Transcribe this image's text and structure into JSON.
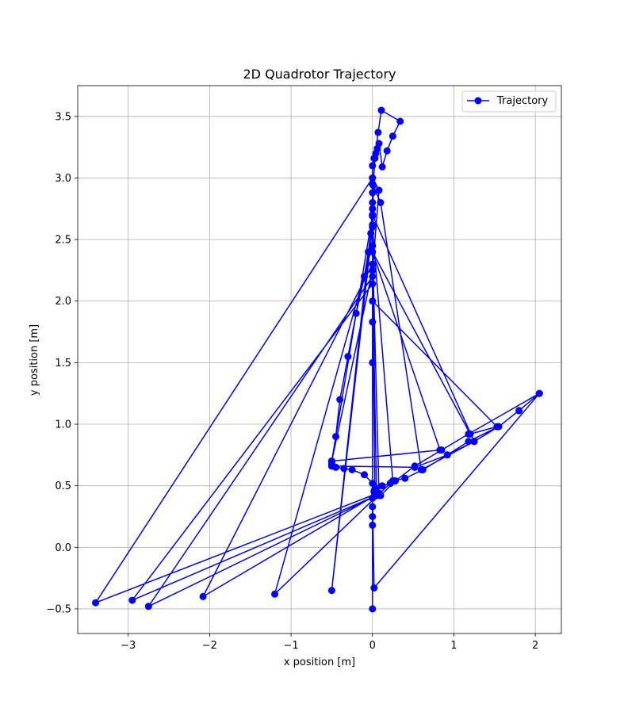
{
  "chart_data": {
    "type": "line",
    "title": "2D Quadrotor Trajectory",
    "xlabel": "x position [m]",
    "ylabel": "y position [m]",
    "xlim": [
      -3.62,
      2.32
    ],
    "ylim": [
      -0.7,
      3.75
    ],
    "xticks": [
      -3,
      -2,
      -1,
      0,
      1,
      2
    ],
    "xtick_labels": [
      "−3",
      "−2",
      "−1",
      "0",
      "1",
      "2"
    ],
    "yticks": [
      -0.5,
      0.0,
      0.5,
      1.0,
      1.5,
      2.0,
      2.5,
      3.0,
      3.5
    ],
    "ytick_labels": [
      "−0.5",
      "0.0",
      "0.5",
      "1.0",
      "1.5",
      "2.0",
      "2.5",
      "3.0",
      "3.5"
    ],
    "grid": true,
    "legend_position": "upper right",
    "series": [
      {
        "name": "Trajectory",
        "color": "#0000ff",
        "marker": "circle",
        "x": [
          0.0,
          0.0,
          0.0,
          0.0,
          0.0,
          0.02,
          0.05,
          0.12,
          0.22,
          0.28,
          0.25,
          0.4,
          0.62,
          0.92,
          1.25,
          1.55,
          1.8,
          2.05,
          1.18,
          0.85,
          0.52,
          0.28,
          0.1,
          0.02,
          0.0,
          -0.1,
          -0.25,
          -0.35,
          -0.45,
          -0.5,
          -0.5,
          -0.45,
          -0.4,
          -0.3,
          -0.2,
          -0.1,
          -0.05,
          -0.02,
          0.0,
          0.0,
          0.0,
          0.0,
          0.0,
          0.0,
          0.0,
          0.0,
          0.02,
          0.04,
          0.06,
          0.08,
          0.12,
          0.18,
          0.25,
          0.34,
          0.11,
          0.07,
          0.03,
          0.01,
          0.0,
          0.0,
          0.0,
          0.0,
          0.0,
          0.0,
          0.0,
          -0.5,
          -0.5,
          -0.5,
          0.52,
          0.92,
          1.18,
          1.55,
          1.8,
          2.05,
          0.02,
          0.0,
          0.0,
          0.1,
          0.6,
          1.25,
          0.0,
          -0.5,
          0.0,
          0.25,
          -1.2,
          0.0,
          0.08,
          -2.08,
          0.0,
          0.05,
          -2.75,
          0.0,
          0.05,
          -2.95,
          0.0,
          0.03,
          -3.4,
          0.0,
          0.08,
          0.0,
          -0.5,
          0.83,
          0.0,
          1.2,
          1.53,
          0.0
        ],
        "y": [
          -0.5,
          0.18,
          0.25,
          0.33,
          0.4,
          0.45,
          0.48,
          0.5,
          0.52,
          0.54,
          0.54,
          0.56,
          0.63,
          0.75,
          0.86,
          0.98,
          1.11,
          1.25,
          0.92,
          0.79,
          0.66,
          0.54,
          0.42,
          0.46,
          0.52,
          0.59,
          0.63,
          0.64,
          0.65,
          0.66,
          0.7,
          0.9,
          1.2,
          1.55,
          1.9,
          2.2,
          2.4,
          2.55,
          2.62,
          2.69,
          2.75,
          2.8,
          2.88,
          2.95,
          3.0,
          3.1,
          3.16,
          3.2,
          3.24,
          3.28,
          3.09,
          3.22,
          3.34,
          3.46,
          3.55,
          3.37,
          3.16,
          2.94,
          2.25,
          2.14,
          1.83,
          1.5,
          2.3,
          2.45,
          2.7,
          0.7,
          0.68,
          0.66,
          0.65,
          0.75,
          0.86,
          0.98,
          1.11,
          1.25,
          -0.33,
          0.4,
          2.95,
          2.8,
          0.63,
          0.86,
          2.7,
          -0.35,
          2.6,
          0.54,
          -0.38,
          2.45,
          0.44,
          -0.4,
          2.3,
          0.42,
          -0.48,
          2.2,
          0.42,
          -0.43,
          2.14,
          0.43,
          -0.45,
          3.0,
          2.9,
          2.25,
          0.7,
          0.79,
          2.4,
          0.92,
          0.98,
          2.0
        ]
      }
    ]
  }
}
